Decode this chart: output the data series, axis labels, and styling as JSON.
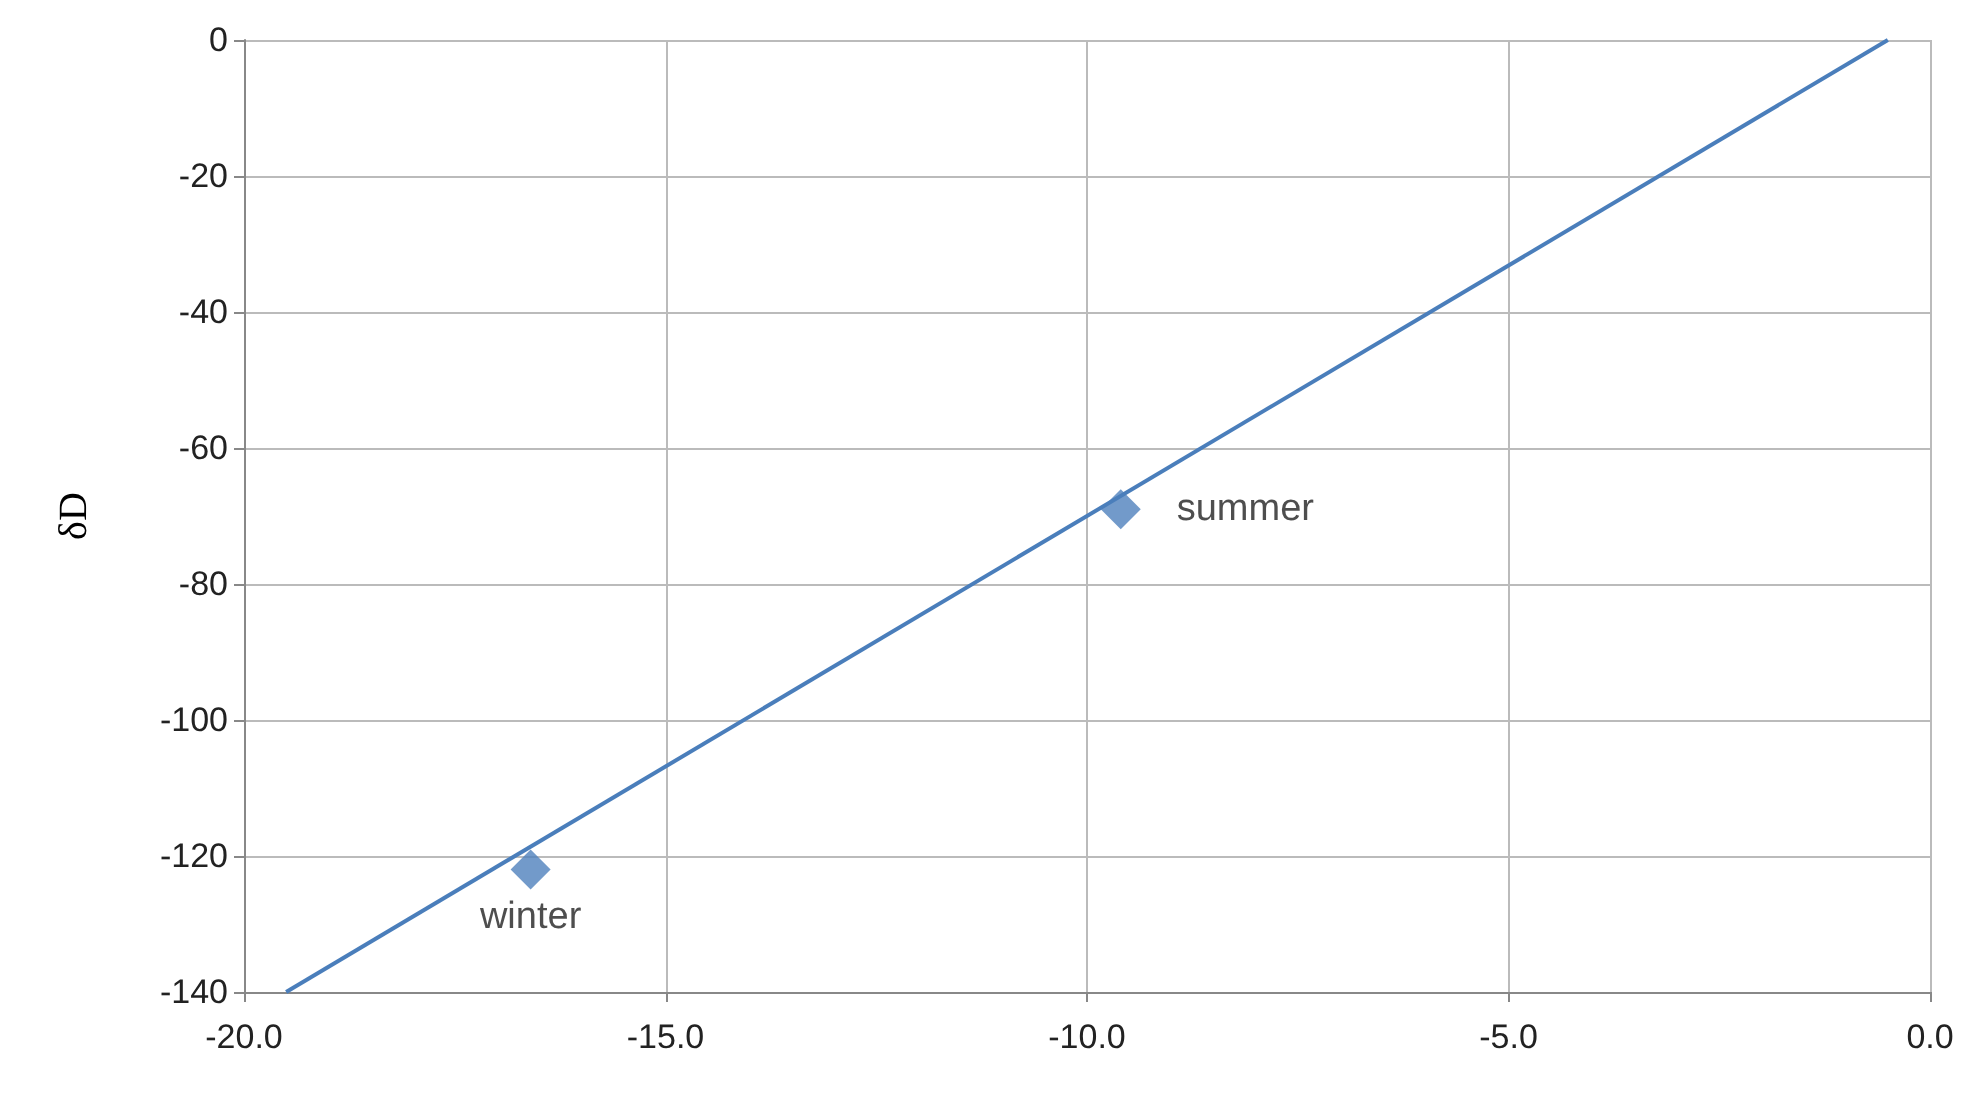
{
  "chart_data": {
    "type": "scatter",
    "ylabel": "δD",
    "series": [
      {
        "type": "line",
        "color": "#4a7ebb",
        "x": [
          -19.5,
          -0.5
        ],
        "values": [
          -140,
          0
        ],
        "marker": "none"
      },
      {
        "color": "#4f81bd",
        "x": [
          -16.6,
          -9.6
        ],
        "values": [
          -122,
          -69
        ],
        "marker": "diamond"
      }
    ],
    "annotations": [
      {
        "text": "winter",
        "x": -16.6,
        "y": -122
      },
      {
        "text": "summer",
        "x": -9.6,
        "y": -69
      }
    ],
    "xlim": [
      -20,
      0
    ],
    "xticks": [
      {
        "value": -20,
        "label": "-20.0"
      },
      {
        "value": -15,
        "label": "-15.0"
      },
      {
        "value": -10,
        "label": "-10.0"
      },
      {
        "value": -5,
        "label": "-5.0"
      },
      {
        "value": 0,
        "label": "0.0"
      }
    ],
    "ylim": [
      -140,
      0
    ],
    "yticks": [
      -140,
      -120,
      -100,
      -80,
      -60,
      -40,
      -20,
      0
    ],
    "grid": true
  }
}
